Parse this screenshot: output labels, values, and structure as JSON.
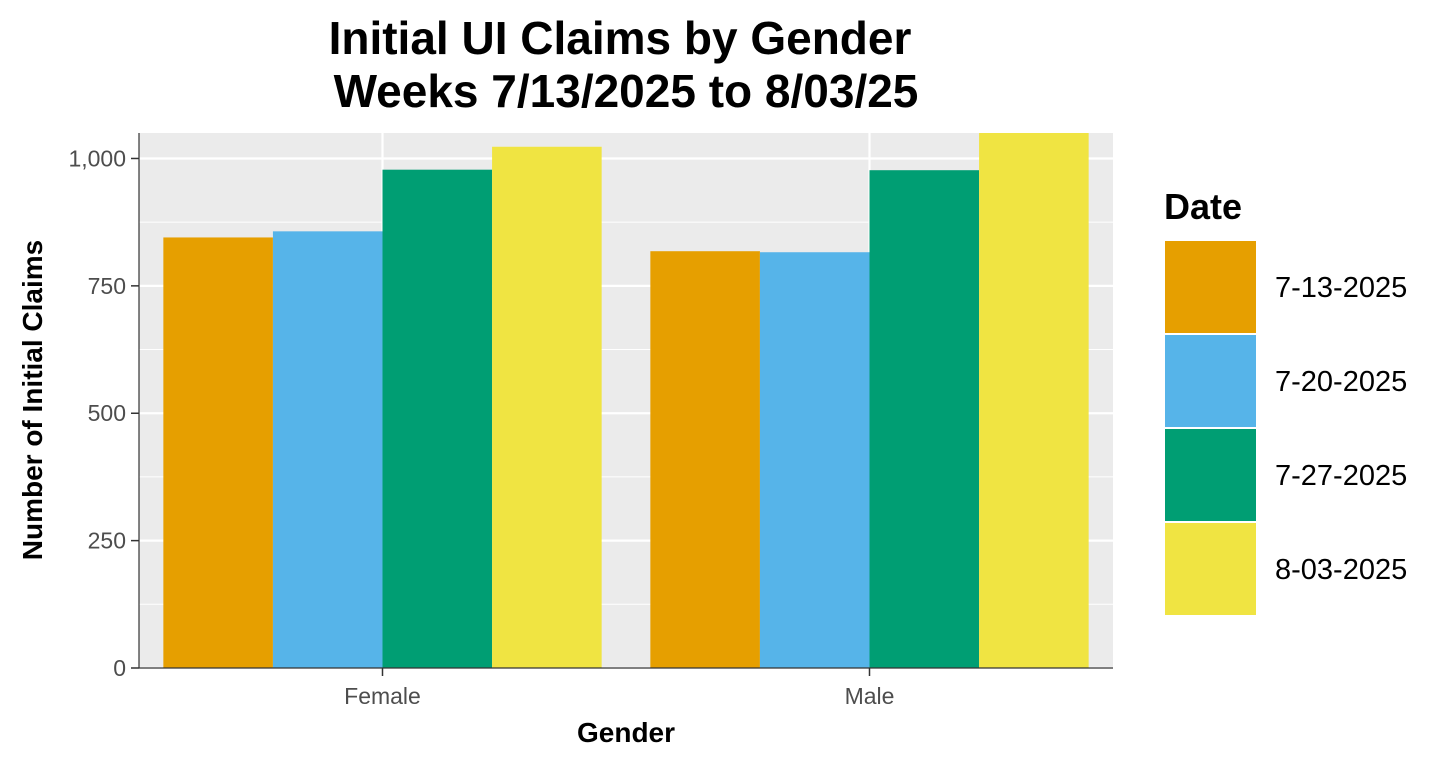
{
  "chart_data": {
    "type": "bar",
    "title": "Initial UI Claims by Gender",
    "subtitle": "Weeks  7/13/2025 to 8/03/25",
    "xlabel": "Gender",
    "ylabel": "Number of Initial Claims",
    "categories": [
      "Female",
      "Male"
    ],
    "series": [
      {
        "name": "7-13-2025",
        "color": "#E69F00",
        "values": [
          845,
          818
        ]
      },
      {
        "name": "7-20-2025",
        "color": "#56B4E9",
        "values": [
          857,
          816
        ]
      },
      {
        "name": "7-27-2025",
        "color": "#009E73",
        "values": [
          978,
          977
        ]
      },
      {
        "name": "8-03-2025",
        "color": "#F0E442",
        "values": [
          1023,
          1050
        ]
      }
    ],
    "ylim": [
      0,
      1050
    ],
    "yticks": [
      0,
      250,
      500,
      750,
      1000
    ],
    "ytick_labels": [
      "0",
      "250",
      "500",
      "750",
      "1,000"
    ],
    "legend": {
      "title": "Date",
      "position": "right"
    },
    "grid": true,
    "panel_background": "#EBEBEB"
  }
}
